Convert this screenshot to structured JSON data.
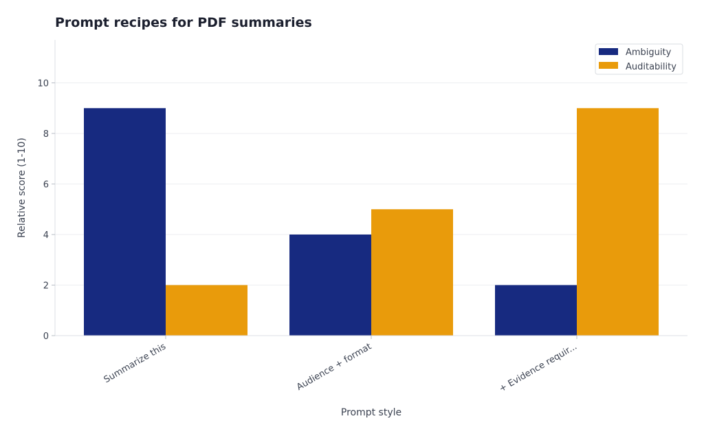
{
  "chart_data": {
    "type": "bar",
    "title": "Prompt recipes for PDF summaries",
    "xlabel": "Prompt style",
    "ylabel": "Relative score (1-10)",
    "categories": [
      "Summarize this",
      "Audience + format",
      "+ Evidence requir..."
    ],
    "series": [
      {
        "name": "Ambiguity",
        "values": [
          9,
          4,
          2
        ],
        "color": "#172a80"
      },
      {
        "name": "Auditability",
        "values": [
          2,
          5,
          9
        ],
        "color": "#e99b0b"
      }
    ],
    "ylim": [
      0,
      11.7
    ],
    "yticks": [
      0,
      2,
      4,
      6,
      8,
      10
    ],
    "grid": true,
    "legend": "top-right"
  }
}
